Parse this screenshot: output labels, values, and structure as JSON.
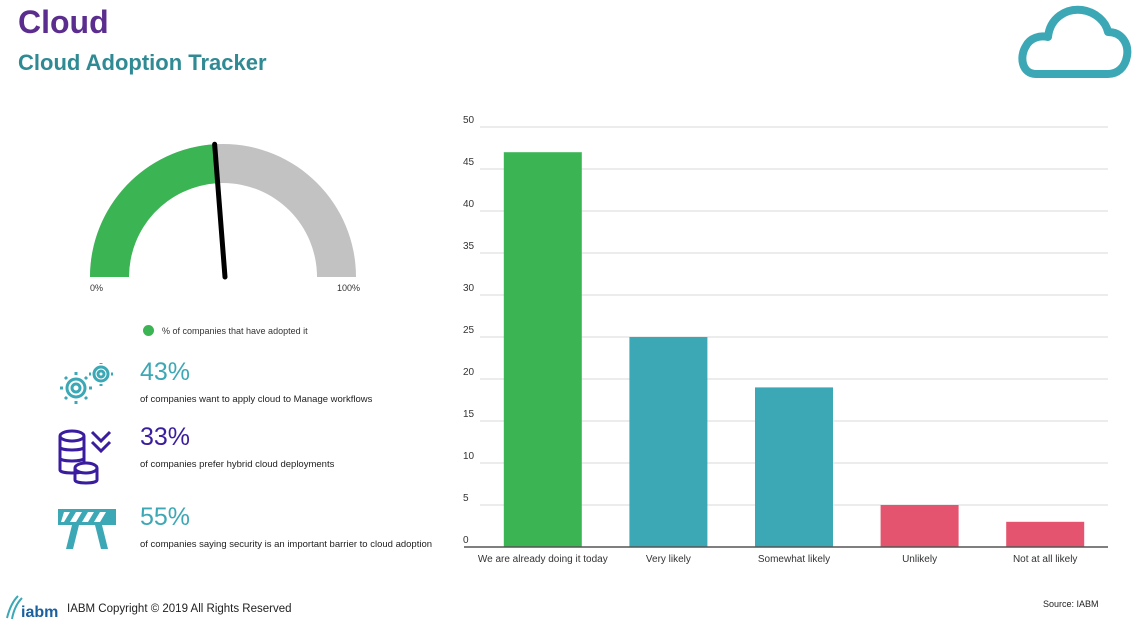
{
  "header": {
    "title": "Cloud",
    "subtitle": "Cloud Adoption Tracker"
  },
  "colors": {
    "purple": "#5b2d8e",
    "teal": "#2f8a94",
    "green": "#3bb554",
    "blue": "#3ca8b5",
    "red": "#e5546e",
    "grey": "#c2c2c2",
    "icon_teal": "#3ca8b5",
    "icon_purple": "#3a1d9e"
  },
  "gauge": {
    "min_label": "0%",
    "max_label": "100%",
    "legend": "% of companies that have adopted it",
    "value_fraction": 0.48
  },
  "stats": [
    {
      "value": "43%",
      "text": "of companies want to apply cloud to Manage workflows",
      "icon": "gears-icon",
      "color": "#3ca8b5"
    },
    {
      "value": "33%",
      "text": "of companies prefer hybrid cloud deployments",
      "icon": "database-coins-icon",
      "color": "#3a1d9e"
    },
    {
      "value": "55%",
      "text": "of companies saying security is an important barrier to cloud adoption",
      "icon": "barrier-icon",
      "color": "#3ca8b5"
    }
  ],
  "chart_data": {
    "type": "bar",
    "categories": [
      "We are already doing it today",
      "Very likely",
      "Somewhat likely",
      "Unlikely",
      "Not at all likely"
    ],
    "values": [
      47,
      25,
      19,
      5,
      3
    ],
    "colors": [
      "#3bb554",
      "#3ca8b5",
      "#3ca8b5",
      "#e5546e",
      "#e5546e"
    ],
    "yticks": [
      0,
      5,
      10,
      15,
      20,
      25,
      30,
      35,
      40,
      45,
      50
    ],
    "ylim": [
      0,
      50
    ],
    "grid": true,
    "title": "",
    "xlabel": "",
    "ylabel": ""
  },
  "footer": {
    "copyright": "IABM Copyright © 2019 All Rights Reserved",
    "source": "Source: IABM",
    "logo_text": "iabm"
  }
}
